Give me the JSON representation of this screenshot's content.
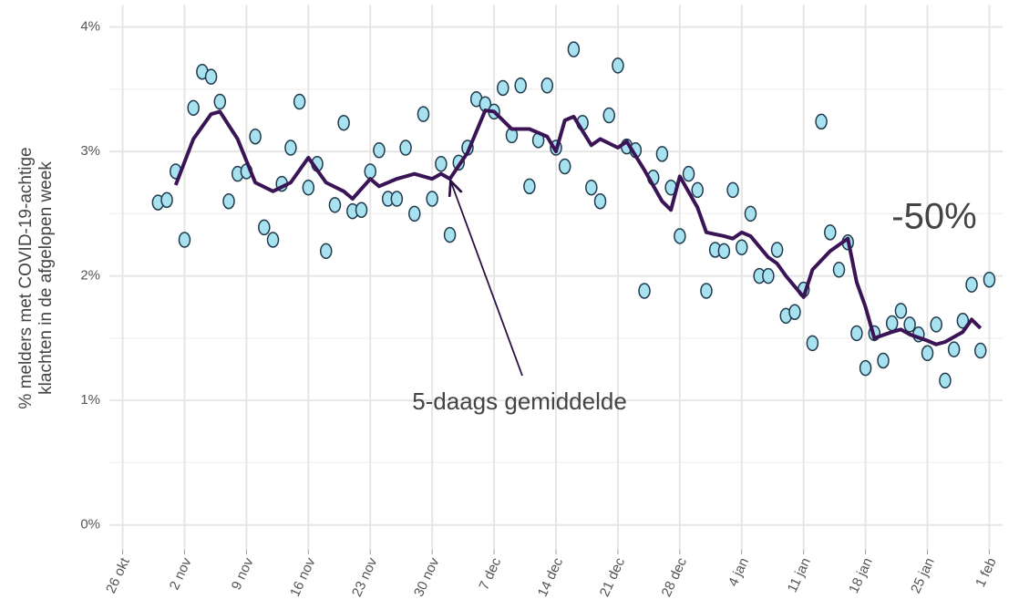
{
  "chart_data": {
    "type": "scatter",
    "y_label": [
      "% melders met COVID-19-achtige",
      "klachten in de afgelopen week"
    ],
    "annotations": [
      "5-daags gemiddelde",
      "-50%"
    ],
    "xlim": [
      -1.5,
      99.5
    ],
    "xticks": [
      {
        "value": 0,
        "label": "26 okt"
      },
      {
        "value": 7,
        "label": "2 nov"
      },
      {
        "value": 14,
        "label": "9 nov"
      },
      {
        "value": 21,
        "label": "16 nov"
      },
      {
        "value": 28,
        "label": "23 nov"
      },
      {
        "value": 35,
        "label": "30 nov"
      },
      {
        "value": 42,
        "label": "7 dec"
      },
      {
        "value": 49,
        "label": "14 dec"
      },
      {
        "value": 56,
        "label": "21 dec"
      },
      {
        "value": 63,
        "label": "28 dec"
      },
      {
        "value": 70,
        "label": "4 jan"
      },
      {
        "value": 77,
        "label": "11 jan"
      },
      {
        "value": 84,
        "label": "18 jan"
      },
      {
        "value": 91,
        "label": "25 jan"
      },
      {
        "value": 98,
        "label": "1 feb"
      }
    ],
    "ylim": [
      -0.2,
      4.18
    ],
    "yticks": [
      {
        "value": 0,
        "label": "0%"
      },
      {
        "value": 1,
        "label": "1%"
      },
      {
        "value": 2,
        "label": "2%"
      },
      {
        "value": 3,
        "label": "3%"
      },
      {
        "value": 4,
        "label": "4%"
      }
    ],
    "yticks_minor": [
      0.5,
      1.5,
      2.5,
      3.5
    ],
    "grid": true,
    "series": [
      {
        "type": "scatter",
        "color": "#a8e2f0",
        "x": [
          4,
          5,
          6,
          7,
          8,
          9,
          10,
          11,
          12,
          13,
          14,
          15,
          16,
          17,
          18,
          19,
          20,
          21,
          22,
          23,
          24,
          25,
          26,
          27,
          28,
          29,
          30,
          31,
          32,
          33,
          34,
          35,
          36,
          37,
          38,
          39,
          40,
          41,
          42,
          43,
          44,
          45,
          46,
          47,
          48,
          49,
          50,
          51,
          52,
          53,
          54,
          55,
          56,
          57,
          58,
          59,
          60,
          61,
          62,
          63,
          64,
          65,
          66,
          67,
          68,
          69,
          70,
          71,
          72,
          73,
          74,
          75,
          76,
          77,
          78,
          79,
          80,
          81,
          82,
          83,
          84,
          85,
          86,
          87,
          88,
          89,
          90,
          91,
          92,
          93,
          94,
          95,
          96,
          97,
          98
        ],
        "values": [
          2.59,
          2.61,
          2.84,
          2.29,
          3.35,
          3.64,
          3.6,
          3.4,
          2.6,
          2.82,
          2.84,
          3.12,
          2.39,
          2.29,
          2.74,
          3.03,
          3.4,
          2.71,
          2.9,
          2.2,
          2.57,
          3.23,
          2.52,
          2.53,
          2.84,
          3.01,
          2.62,
          2.62,
          3.03,
          2.5,
          3.3,
          2.62,
          2.9,
          2.33,
          2.91,
          3.03,
          3.42,
          3.38,
          3.32,
          3.51,
          3.13,
          3.53,
          2.72,
          3.09,
          3.53,
          3.03,
          2.88,
          3.82,
          3.23,
          2.71,
          2.6,
          3.29,
          3.69,
          3.04,
          3.01,
          1.88,
          2.79,
          2.98,
          2.71,
          2.32,
          2.82,
          2.69,
          1.88,
          2.21,
          2.2,
          2.69,
          2.23,
          2.5,
          2.0,
          2.0,
          2.21,
          1.68,
          1.71,
          1.89,
          1.46,
          3.24,
          2.35,
          2.05,
          2.27,
          1.54,
          1.26,
          1.54,
          1.32,
          1.62,
          1.72,
          1.61,
          1.53,
          1.38,
          1.61,
          1.16,
          1.41,
          1.64,
          1.93,
          1.4,
          1.97
        ]
      },
      {
        "type": "line",
        "color": "#3b1456",
        "x": [
          6,
          8,
          10,
          11,
          13,
          15,
          17,
          19,
          21,
          23,
          25,
          26,
          28,
          29,
          31,
          33,
          35,
          36,
          37,
          39,
          41,
          42,
          44,
          46,
          48,
          49,
          50,
          51,
          53,
          54,
          56,
          57,
          59,
          61,
          62,
          63,
          65,
          66,
          68,
          69,
          70,
          71,
          73,
          74,
          75,
          77,
          78,
          80,
          81,
          82,
          83,
          84,
          85,
          87,
          88,
          89,
          91,
          92,
          93,
          95,
          96,
          97
        ],
        "values": [
          2.73,
          3.1,
          3.3,
          3.32,
          3.1,
          2.75,
          2.68,
          2.75,
          2.95,
          2.75,
          2.68,
          2.62,
          2.78,
          2.72,
          2.78,
          2.82,
          2.78,
          2.82,
          2.78,
          2.99,
          3.33,
          3.32,
          3.18,
          3.18,
          3.12,
          3.0,
          3.25,
          3.28,
          3.05,
          3.1,
          3.03,
          3.08,
          2.85,
          2.6,
          2.53,
          2.8,
          2.55,
          2.35,
          2.32,
          2.3,
          2.35,
          2.32,
          2.15,
          2.1,
          2.0,
          1.83,
          2.05,
          2.2,
          2.25,
          2.3,
          1.95,
          1.75,
          1.5,
          1.55,
          1.57,
          1.53,
          1.48,
          1.45,
          1.47,
          1.55,
          1.65,
          1.58
        ]
      }
    ]
  }
}
